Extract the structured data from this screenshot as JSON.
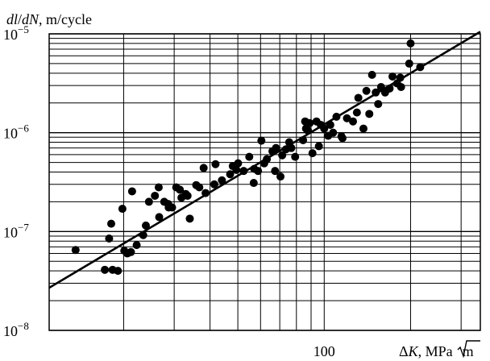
{
  "chart_data": {
    "type": "scatter",
    "title": "",
    "ylabel": {
      "part1": "dl",
      "sep": "/",
      "part2": "dN",
      "rest": ", m/cycle"
    },
    "xlabel": {
      "delta": "Δ",
      "var": "K",
      "rest": ", MPa",
      "root": "m"
    },
    "x_scale": "log",
    "y_scale": "log",
    "xlim": [
      11,
      350
    ],
    "ylim": [
      1e-08,
      1e-05
    ],
    "y_ticks": [
      {
        "value": 1e-08,
        "base": "10",
        "exp": "−8"
      },
      {
        "value": 1e-07,
        "base": "10",
        "exp": "−7"
      },
      {
        "value": 1e-06,
        "base": "10",
        "exp": "−6"
      },
      {
        "value": 1e-05,
        "base": "10",
        "exp": "−5"
      }
    ],
    "x_ticks": [
      {
        "value": 100,
        "label": "100"
      }
    ],
    "grid": true,
    "fit_line": {
      "x": [
        11,
        350
      ],
      "y": [
        2.7e-08,
        1.05e-05
      ]
    },
    "points": [
      [
        13.6,
        6.5e-08
      ],
      [
        17.2,
        4.1e-08
      ],
      [
        17.8,
        8.5e-08
      ],
      [
        18.1,
        1.2e-07
      ],
      [
        18.3,
        4.1e-08
      ],
      [
        19.1,
        4e-08
      ],
      [
        19.8,
        1.7e-07
      ],
      [
        20.1,
        6.4e-08
      ],
      [
        20.6,
        6e-08
      ],
      [
        21.2,
        6.2e-08
      ],
      [
        21.4,
        2.55e-07
      ],
      [
        22.2,
        7.3e-08
      ],
      [
        23.4,
        9.2e-08
      ],
      [
        23.9,
        1.15e-07
      ],
      [
        24.5,
        2e-07
      ],
      [
        25.7,
        2.3e-07
      ],
      [
        26.5,
        2.8e-07
      ],
      [
        26.6,
        1.4e-07
      ],
      [
        27.7,
        2e-07
      ],
      [
        28.6,
        1.9e-07
      ],
      [
        28.7,
        1.75e-07
      ],
      [
        29.5,
        1.75e-07
      ],
      [
        30.5,
        2.8e-07
      ],
      [
        31.4,
        2.65e-07
      ],
      [
        31.8,
        2.2e-07
      ],
      [
        32.9,
        2.4e-07
      ],
      [
        33.4,
        2.3e-07
      ],
      [
        34.0,
        1.35e-07
      ],
      [
        35.8,
        2.95e-07
      ],
      [
        36.7,
        2.8e-07
      ],
      [
        38.0,
        4.4e-07
      ],
      [
        38.6,
        2.45e-07
      ],
      [
        41.4,
        3e-07
      ],
      [
        41.8,
        4.8e-07
      ],
      [
        44.0,
        3.3e-07
      ],
      [
        47.0,
        3.8e-07
      ],
      [
        48.0,
        4.6e-07
      ],
      [
        49.4,
        4.2e-07
      ],
      [
        50.1,
        4.9e-07
      ],
      [
        52.4,
        4.1e-07
      ],
      [
        54.8,
        5.7e-07
      ],
      [
        56.8,
        3.1e-07
      ],
      [
        57.0,
        4.3e-07
      ],
      [
        58.8,
        4.1e-07
      ],
      [
        60.4,
        8.3e-07
      ],
      [
        61.8,
        4.9e-07
      ],
      [
        63.1,
        5.4e-07
      ],
      [
        66.0,
        6.5e-07
      ],
      [
        67.4,
        4.1e-07
      ],
      [
        67.9,
        7e-07
      ],
      [
        70.4,
        3.6e-07
      ],
      [
        71.4,
        5.9e-07
      ],
      [
        73.6,
        6.8e-07
      ],
      [
        75.5,
        8e-07
      ],
      [
        76.8,
        7e-07
      ],
      [
        79.2,
        5.7e-07
      ],
      [
        84.4,
        8.4e-07
      ],
      [
        85.8,
        1.3e-06
      ],
      [
        86.4,
        1.1e-06
      ],
      [
        87.8,
        1.05e-06
      ],
      [
        89.0,
        1.25e-06
      ],
      [
        91.0,
        6.2e-07
      ],
      [
        94.0,
        1.3e-06
      ],
      [
        95.8,
        7.3e-07
      ],
      [
        97.3,
        1.2e-06
      ],
      [
        100.0,
        1.1e-06
      ],
      [
        103.2,
        9.3e-07
      ],
      [
        105.0,
        1.2e-06
      ],
      [
        107.4,
        1e-06
      ],
      [
        110.3,
        1.45e-06
      ],
      [
        114.8,
        9.2e-07
      ],
      [
        115.8,
        8.8e-07
      ],
      [
        120.0,
        1.4e-06
      ],
      [
        126.0,
        1.3e-06
      ],
      [
        130.0,
        1.6e-06
      ],
      [
        131.5,
        2.25e-06
      ],
      [
        137.0,
        1.1e-06
      ],
      [
        140.3,
        2.65e-06
      ],
      [
        143.6,
        1.55e-06
      ],
      [
        146.8,
        3.85e-06
      ],
      [
        151.2,
        2.55e-06
      ],
      [
        154.2,
        1.95e-06
      ],
      [
        157.8,
        2.9e-06
      ],
      [
        163.0,
        2.55e-06
      ],
      [
        169.0,
        2.8e-06
      ],
      [
        173.0,
        3.7e-06
      ],
      [
        179.6,
        3.15e-06
      ],
      [
        184.1,
        3.6e-06
      ],
      [
        185.3,
        2.9e-06
      ],
      [
        197.8,
        5e-06
      ],
      [
        200.0,
        8e-06
      ],
      [
        216.0,
        4.6e-06
      ]
    ]
  }
}
